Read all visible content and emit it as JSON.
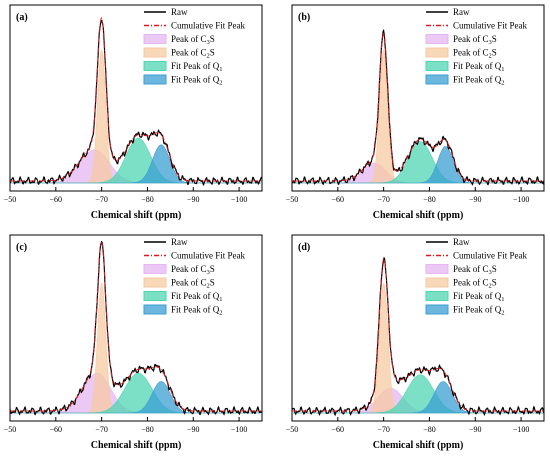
{
  "figure": {
    "xlabel": "Chemical shift (ppm)"
  },
  "legend": [
    {
      "key": "raw",
      "label": "Raw",
      "label_sub": "",
      "label_suffix": "",
      "color": "#000000",
      "style": "line"
    },
    {
      "key": "fit",
      "label": "Cumulative Fit Peak",
      "label_sub": "",
      "label_suffix": "",
      "color": "#e0191e",
      "style": "dashdot"
    },
    {
      "key": "c3s",
      "label": "Peak of C",
      "label_sub": "3",
      "label_suffix": "S",
      "color": "#e5b6f2",
      "style": "fill"
    },
    {
      "key": "c2s",
      "label": "Peak of C",
      "label_sub": "2",
      "label_suffix": "S",
      "color": "#f7c9a2",
      "style": "fill"
    },
    {
      "key": "q1",
      "label": "Fit Peak of Q",
      "label_sub": "1",
      "label_suffix": "",
      "color": "#4fd6b1",
      "style": "fill"
    },
    {
      "key": "q2",
      "label": "Fit Peak of Q",
      "label_sub": "2",
      "label_suffix": "",
      "color": "#3b9fd1",
      "style": "fill"
    }
  ],
  "chart_data": [
    {
      "panel": "(a)",
      "type": "area",
      "xlabel": "Chemical shift (ppm)",
      "xlim": [
        -50,
        -105
      ],
      "xticks": [
        -50,
        -60,
        -70,
        -80,
        -90,
        -100
      ],
      "ylim": [
        0,
        1.0
      ],
      "series": [
        {
          "name": "Peak of C3S",
          "center": -68.5,
          "height": 0.2,
          "width": 3.2
        },
        {
          "name": "Peak of C2S",
          "center": -70.0,
          "height": 0.8,
          "width": 0.9
        },
        {
          "name": "Fit Peak of Q1",
          "center": -78.0,
          "height": 0.27,
          "width": 2.7
        },
        {
          "name": "Fit Peak of Q2",
          "center": -83.0,
          "height": 0.23,
          "width": 1.9
        }
      ]
    },
    {
      "panel": "(b)",
      "type": "area",
      "xlabel": "Chemical shift (ppm)",
      "xlim": [
        -50,
        -105
      ],
      "xticks": [
        -50,
        -60,
        -70,
        -80,
        -90,
        -100
      ],
      "ylim": [
        0,
        1.0
      ],
      "series": [
        {
          "name": "Peak of C3S",
          "center": -68.0,
          "height": 0.12,
          "width": 2.5
        },
        {
          "name": "Peak of C2S",
          "center": -70.0,
          "height": 0.8,
          "width": 0.9
        },
        {
          "name": "Fit Peak of Q1",
          "center": -78.0,
          "height": 0.25,
          "width": 2.6
        },
        {
          "name": "Fit Peak of Q2",
          "center": -83.5,
          "height": 0.22,
          "width": 1.7
        }
      ]
    },
    {
      "panel": "(c)",
      "type": "area",
      "xlabel": "Chemical shift (ppm)",
      "xlim": [
        -50,
        -105
      ],
      "xticks": [
        -50,
        -60,
        -70,
        -80,
        -90,
        -100
      ],
      "ylim": [
        0,
        1.0
      ],
      "series": [
        {
          "name": "Peak of C3S",
          "center": -69.0,
          "height": 0.24,
          "width": 3.0
        },
        {
          "name": "Peak of C2S",
          "center": -70.0,
          "height": 0.78,
          "width": 0.9
        },
        {
          "name": "Fit Peak of Q1",
          "center": -78.0,
          "height": 0.24,
          "width": 3.0
        },
        {
          "name": "Fit Peak of Q2",
          "center": -83.0,
          "height": 0.19,
          "width": 2.0
        }
      ]
    },
    {
      "panel": "(d)",
      "type": "area",
      "xlabel": "Chemical shift (ppm)",
      "xlim": [
        -50,
        -105
      ],
      "xticks": [
        -50,
        -60,
        -70,
        -80,
        -90,
        -100
      ],
      "ylim": [
        0,
        1.0
      ],
      "series": [
        {
          "name": "Peak of C3S",
          "center": -71.5,
          "height": 0.15,
          "width": 2.8
        },
        {
          "name": "Peak of C2S",
          "center": -70.0,
          "height": 0.78,
          "width": 0.95
        },
        {
          "name": "Fit Peak of Q1",
          "center": -78.0,
          "height": 0.23,
          "width": 2.9
        },
        {
          "name": "Fit Peak of Q2",
          "center": -83.0,
          "height": 0.19,
          "width": 2.0
        }
      ]
    }
  ]
}
